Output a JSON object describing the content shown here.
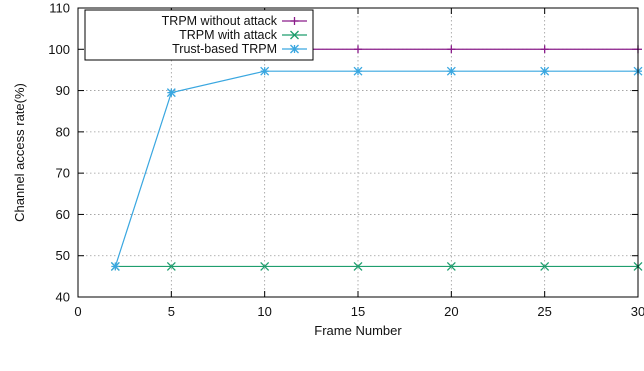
{
  "chart_data": {
    "type": "line",
    "title": "",
    "xlabel": "Frame Number",
    "ylabel": "Channel access rate(%)",
    "xlim": [
      0,
      30
    ],
    "ylim": [
      40,
      110
    ],
    "xticks": [
      0,
      5,
      10,
      15,
      20,
      25,
      30
    ],
    "yticks": [
      40,
      50,
      60,
      70,
      80,
      90,
      100,
      110
    ],
    "xtick_labels": [
      "0",
      "5",
      "10",
      "15",
      "20",
      "25",
      "30"
    ],
    "ytick_labels": [
      "40",
      "50",
      "60",
      "70",
      "80",
      "90",
      "100",
      "110"
    ],
    "grid": true,
    "legend_position": "top-left",
    "x": [
      2,
      5,
      10,
      15,
      20,
      25,
      30
    ],
    "series": [
      {
        "name": "TRPM without attack",
        "values": [
          100,
          100,
          100,
          100,
          100,
          100,
          100
        ],
        "color": "#8a1c8a",
        "marker": "plus"
      },
      {
        "name": "TRPM with attack",
        "values": [
          47.4,
          47.4,
          47.4,
          47.4,
          47.4,
          47.4,
          47.4
        ],
        "color": "#1f9e6e",
        "marker": "cross"
      },
      {
        "name": "Trust-based TRPM",
        "values": [
          47.4,
          89.5,
          94.7,
          94.7,
          94.7,
          94.7,
          94.7
        ],
        "color": "#3aa7e0",
        "marker": "star"
      }
    ]
  }
}
